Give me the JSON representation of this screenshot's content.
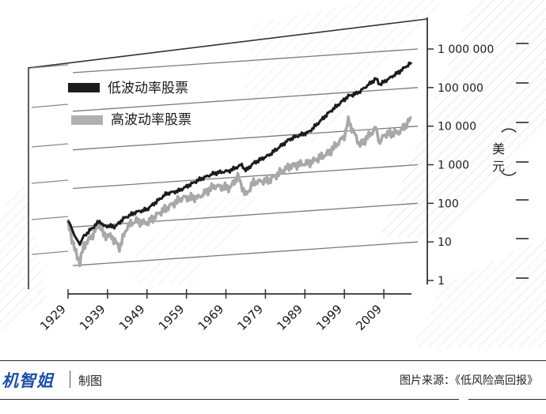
{
  "chart_data": {
    "type": "line",
    "title": "",
    "xlabel": "",
    "ylabel": "美元",
    "y_scale": "log",
    "ylim": [
      1,
      1000000
    ],
    "y_ticks": [
      {
        "value": 1,
        "label": "1"
      },
      {
        "value": 10,
        "label": "10"
      },
      {
        "value": 100,
        "label": "100"
      },
      {
        "value": 1000,
        "label": "1 000"
      },
      {
        "value": 10000,
        "label": "10 000"
      },
      {
        "value": 100000,
        "label": "100 000"
      },
      {
        "value": 1000000,
        "label": "1 000 000"
      }
    ],
    "xlim": [
      1929,
      2016
    ],
    "x_ticks": [
      "1929",
      "1939",
      "1949",
      "1959",
      "1969",
      "1979",
      "1989",
      "1999",
      "2009"
    ],
    "legend_position": "top-left",
    "grid": true,
    "series": [
      {
        "name": "低波动率股票",
        "color": "#1c1c1c",
        "x": [
          1929,
          1930,
          1931,
          1932,
          1933,
          1935,
          1937,
          1938,
          1941,
          1943,
          1946,
          1949,
          1954,
          1957,
          1962,
          1966,
          1970,
          1973,
          1974,
          1976,
          1980,
          1985,
          1987,
          1990,
          1995,
          2000,
          2002,
          2003,
          2007,
          2008,
          2009,
          2013,
          2016
        ],
        "y": [
          35,
          22,
          12,
          9,
          14,
          22,
          35,
          26,
          25,
          40,
          58,
          70,
          180,
          210,
          400,
          600,
          700,
          1000,
          700,
          1100,
          1800,
          4500,
          5500,
          7000,
          22000,
          60000,
          70000,
          80000,
          170000,
          120000,
          140000,
          260000,
          450000
        ]
      },
      {
        "name": "高波动率股票",
        "color": "#a8a8a8",
        "x": [
          1929,
          1930,
          1931,
          1932,
          1933,
          1935,
          1937,
          1938,
          1940,
          1942,
          1944,
          1946,
          1949,
          1952,
          1958,
          1962,
          1966,
          1970,
          1972,
          1974,
          1976,
          1980,
          1985,
          1987,
          1990,
          1995,
          1999,
          2000,
          2002,
          2003,
          2007,
          2008,
          2009,
          2013,
          2016
        ],
        "y": [
          30,
          12,
          5,
          3,
          8,
          14,
          30,
          15,
          14,
          7,
          25,
          35,
          30,
          55,
          140,
          140,
          280,
          250,
          500,
          160,
          350,
          400,
          900,
          1000,
          1100,
          2000,
          5500,
          14000,
          5000,
          3200,
          9000,
          3500,
          6000,
          7000,
          16000
        ]
      }
    ]
  },
  "footer": {
    "brand": "机智姐",
    "credit": "制图",
    "source": "图片来源：《低风险高回报》"
  }
}
